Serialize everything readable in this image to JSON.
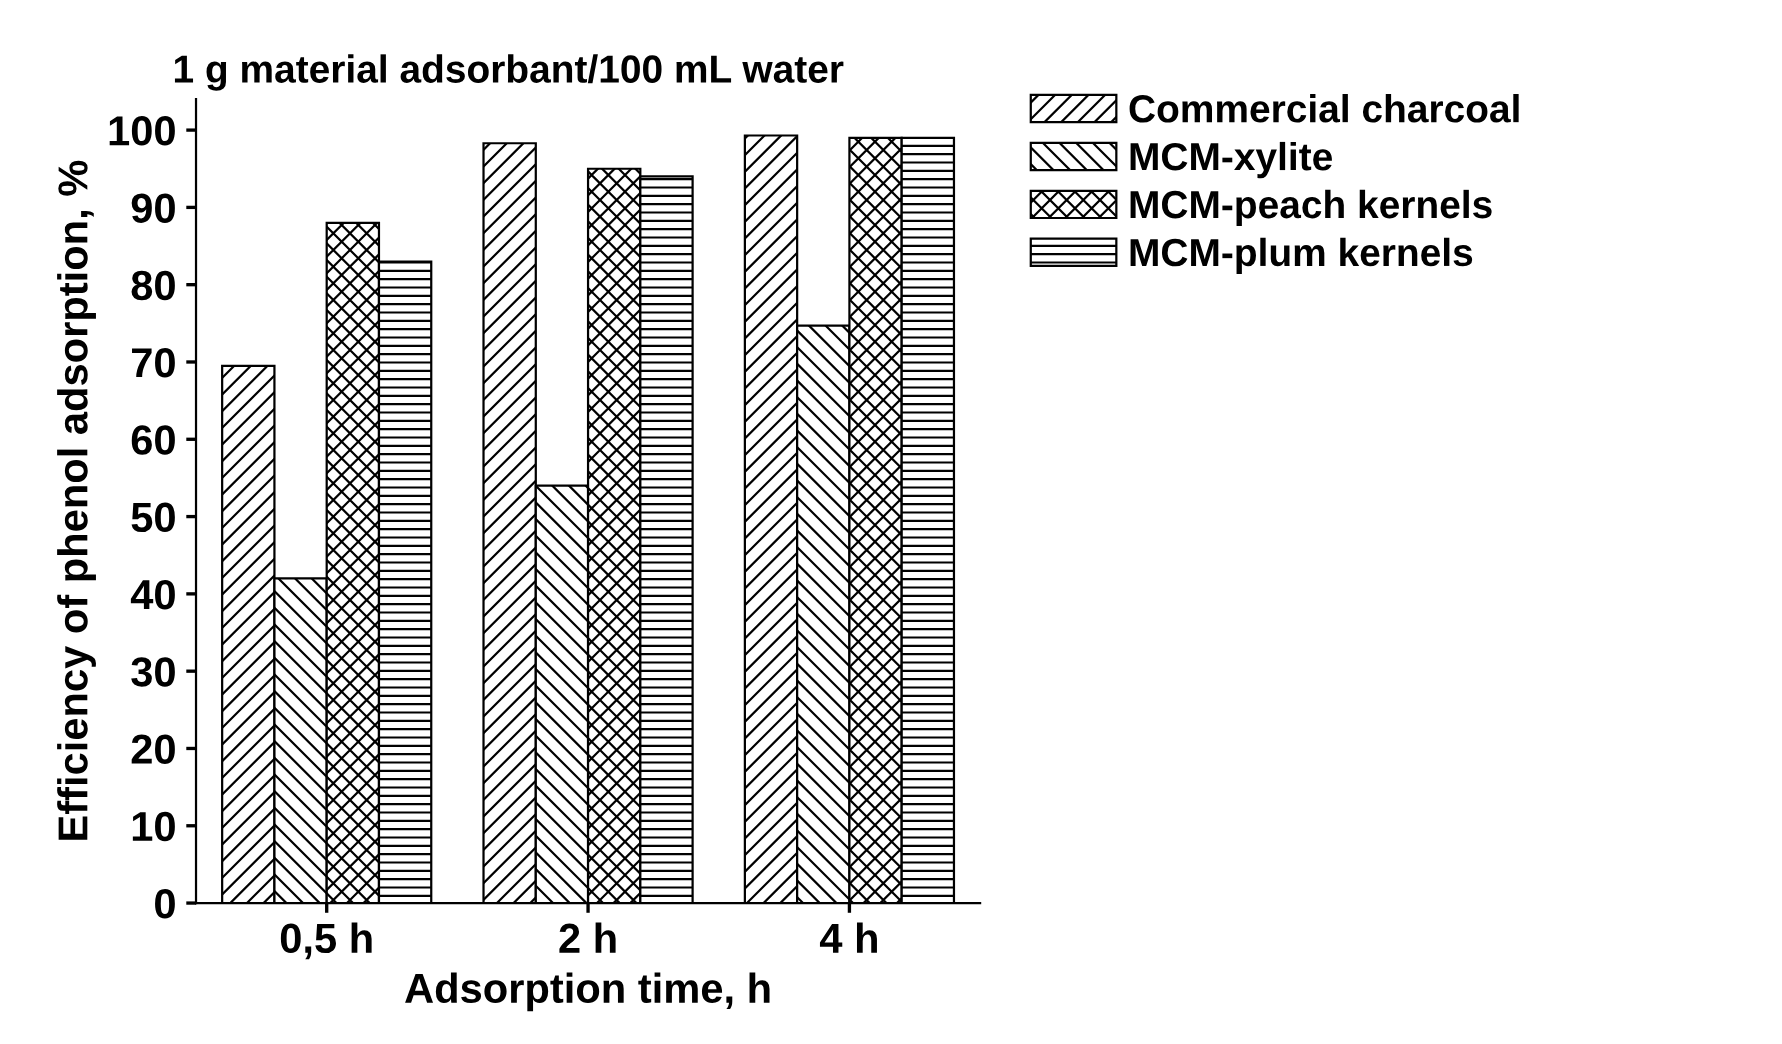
{
  "chart_data": {
    "type": "bar",
    "title": "1 g material adsorbant/100 mL water",
    "xlabel": "Adsorption time, h",
    "ylabel": "Efficiency of phenol adsorption, %",
    "categories": [
      "0,5 h",
      "2 h",
      "4 h"
    ],
    "series": [
      {
        "name": "Commercial charcoal",
        "color": "#000000",
        "values": [
          69.5,
          98.3,
          99.3
        ]
      },
      {
        "name": "MCM-xylite",
        "color": "#000000",
        "values": [
          42,
          54,
          74.7
        ]
      },
      {
        "name": "MCM-peach kernels",
        "color": "#000000",
        "values": [
          88,
          95,
          99
        ]
      },
      {
        "name": "MCM-plum kernels",
        "color": "#000000",
        "values": [
          83,
          94,
          99
        ]
      }
    ],
    "ylim": [
      0,
      104
    ],
    "yticks": [
      0,
      10,
      20,
      30,
      40,
      50,
      60,
      70,
      80,
      90,
      100
    ],
    "grid": false,
    "legend": "top right"
  }
}
